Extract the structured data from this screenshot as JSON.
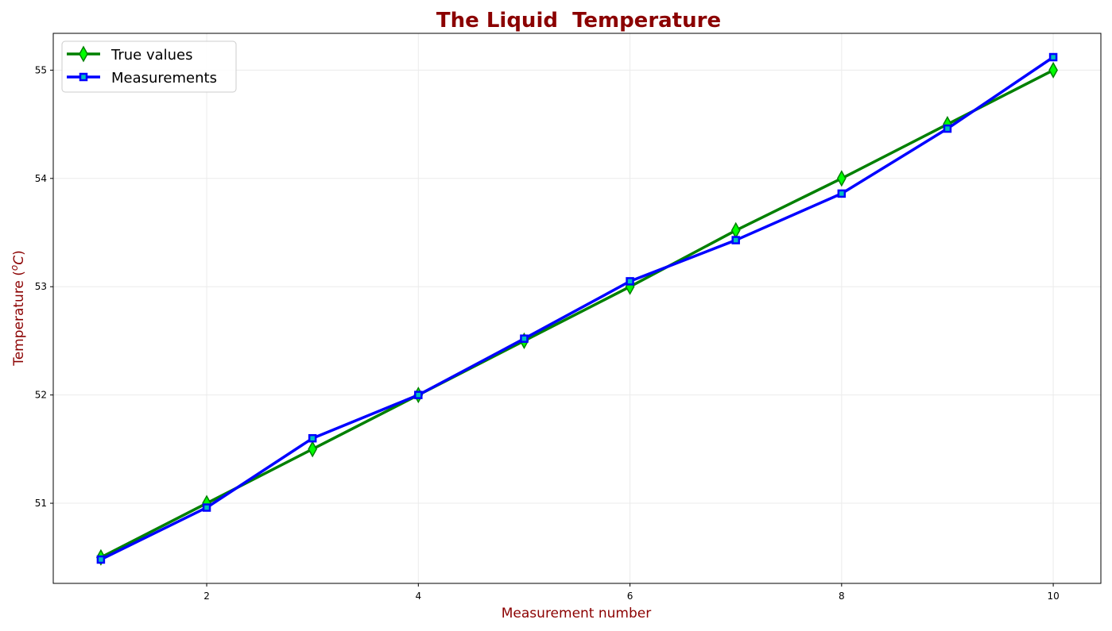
{
  "chart_data": {
    "type": "line",
    "title": "The Liquid  Temperature",
    "xlabel": "Measurement number",
    "ylabel": "Temperature (°C)",
    "ylabel_parts": {
      "prefix": "Temperature (",
      "sup": "o",
      "unit": "C",
      "suffix": ")"
    },
    "x": [
      1,
      2,
      3,
      4,
      5,
      6,
      7,
      8,
      9,
      10
    ],
    "series": [
      {
        "name": "True values",
        "values": [
          50.5,
          51.0,
          51.5,
          52.0,
          52.5,
          53.0,
          53.52,
          54.0,
          54.5,
          55.0
        ],
        "line_color": "#008000",
        "marker": "thin_diamond",
        "marker_face_color": "#00ff00",
        "marker_edge_color": "#008000"
      },
      {
        "name": "Measurements",
        "values": [
          50.48,
          50.96,
          51.6,
          52.0,
          52.52,
          53.05,
          53.43,
          53.86,
          54.46,
          55.12
        ],
        "line_color": "#0000ff",
        "marker": "square",
        "marker_face_color": "#00bfbf",
        "marker_edge_color": "#0000ff"
      }
    ],
    "xticks": [
      2,
      4,
      6,
      8,
      10
    ],
    "yticks": [
      51,
      52,
      53,
      54,
      55
    ],
    "xlim": [
      0.55,
      10.45
    ],
    "ylim": [
      50.26,
      55.34
    ],
    "grid": true,
    "legend_position": "upper left"
  }
}
